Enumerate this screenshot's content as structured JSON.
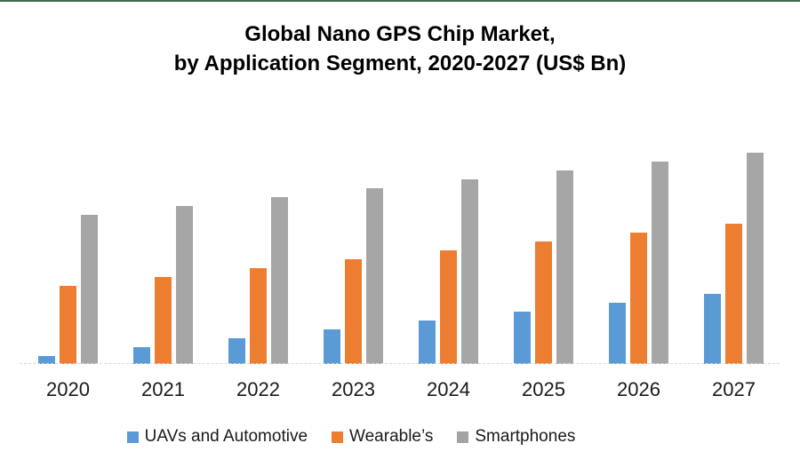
{
  "page": {
    "top_border_color": "#3F6B47",
    "background_color": "#ffffff",
    "axis_line_color": "#d9d9d9"
  },
  "chart_data": {
    "type": "bar",
    "title_line1": "Global Nano GPS Chip Market,",
    "title_line2": "by Application Segment, 2020-2027 (US$ Bn)",
    "categories": [
      "2020",
      "2021",
      "2022",
      "2023",
      "2024",
      "2025",
      "2026",
      "2027"
    ],
    "series": [
      {
        "name": "UAVs and Automotive",
        "color": "#5B9BD5",
        "pattern": "solid",
        "values": [
          9,
          19,
          29,
          39,
          49,
          59,
          69,
          79
        ]
      },
      {
        "name": "Wearable’s",
        "color": "#ED7D31",
        "pattern": "solid",
        "values": [
          88,
          98,
          108,
          118,
          128,
          138,
          148,
          158
        ]
      },
      {
        "name": "Smartphones",
        "color": "#A6A6A6",
        "pattern": "dots",
        "values": [
          168,
          178,
          188,
          198,
          208,
          218,
          228,
          238
        ]
      }
    ],
    "xlabel": "",
    "ylabel": "",
    "ylim": [
      0,
      250
    ],
    "y_axis_visible": false,
    "values_note": "relative units estimated from bar heights; no value axis shown",
    "grid": false,
    "legend_position": "bottom"
  }
}
